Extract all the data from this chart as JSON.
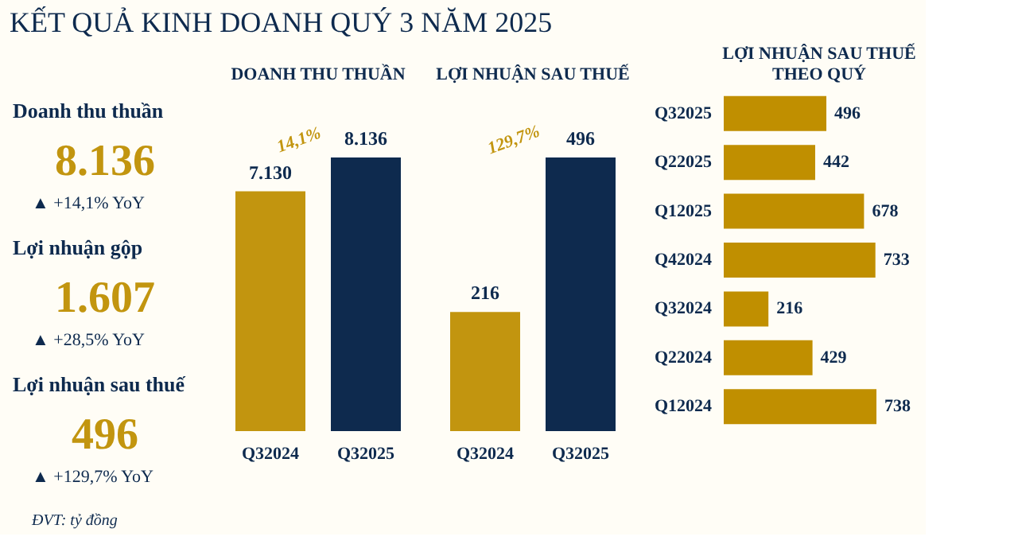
{
  "chart_data": [
    {
      "type": "other",
      "title": "KẾT QUẢ KINH DOANH QUÝ 3 NĂM 2025",
      "annotations": [
        "Doanh thu thuần",
        "8.136",
        "▲ +14,1% YoY",
        "Lợi nhuận gộp",
        "1.607",
        "▲ +28,5% YoY",
        "Lợi nhuận sau thuế",
        "496",
        "▲ +129,7% YoY",
        "ĐVT: tỷ đồng"
      ]
    },
    {
      "type": "bar",
      "title": "DOANH THU THUẦN",
      "categories": [
        "Q32024",
        "Q32025"
      ],
      "values": [
        7130,
        8136
      ],
      "colors": [
        "#c2950f",
        "#0e2a4e"
      ],
      "value_labels": [
        "7.130",
        "8.136"
      ],
      "annotations": [
        "14,1%"
      ]
    },
    {
      "type": "bar",
      "title": "LỢI NHUẬN SAU THUẾ",
      "categories": [
        "Q32024",
        "Q32025"
      ],
      "values": [
        216,
        496
      ],
      "colors": [
        "#c2950f",
        "#0e2a4e"
      ],
      "data_labels": true,
      "annotations": [
        "129,7%"
      ]
    },
    {
      "type": "bar",
      "orientation": "horizontal",
      "title": "LỢI NHUẬN SAU THUẾ THEO QUÝ",
      "categories": [
        "Q32025",
        "Q22025",
        "Q12025",
        "Q42024",
        "Q32024",
        "Q22024",
        "Q12024"
      ],
      "values": [
        496,
        442,
        678,
        733,
        216,
        429,
        738
      ],
      "colors": [
        "#c08f00",
        "#c08f00",
        "#c08f00",
        "#c08f00",
        "#c08f00",
        "#c08f00",
        "#c08f00"
      ],
      "data_labels": true
    }
  ]
}
